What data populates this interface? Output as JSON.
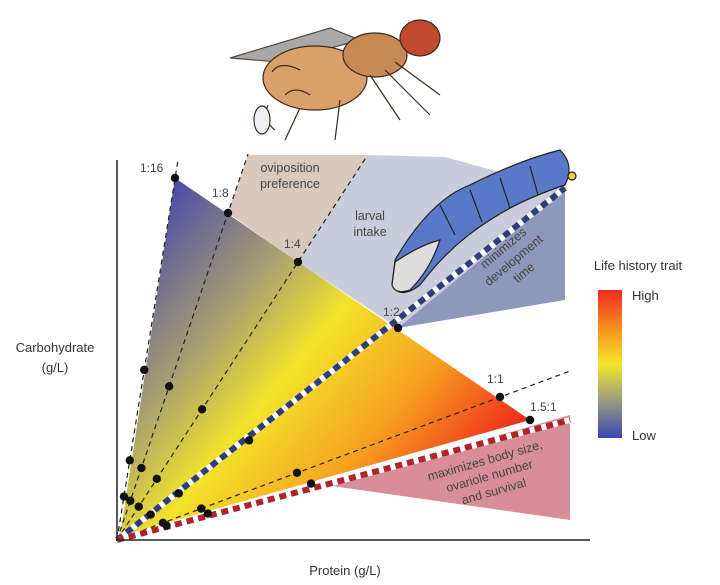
{
  "figure": {
    "ratios": [
      "1:16",
      "1:8",
      "1:4",
      "1:2",
      "1:1",
      "1.5:1"
    ],
    "regions": {
      "oviposition": [
        "oviposition",
        "preference"
      ],
      "larval": [
        "larval",
        "intake"
      ],
      "development": [
        "minimizes",
        "development",
        "time"
      ],
      "body_size": [
        "maximizes body size,",
        "ovariole number",
        "and survival"
      ]
    },
    "axes": {
      "y_label": [
        "Carbohydrate",
        "(g/L)"
      ],
      "x_label": "Protein (g/L)"
    },
    "legend": {
      "title": "Life history trait",
      "high": "High",
      "low": "Low"
    }
  }
}
